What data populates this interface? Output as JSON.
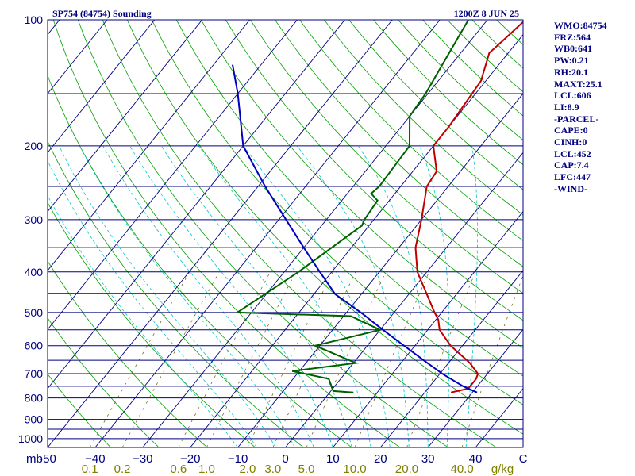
{
  "header": {
    "station": "SP754 (84754) Sounding",
    "datetime": "1200Z  8 JUN 25"
  },
  "side_panel": [
    "WMO:84754",
    "FRZ:564",
    "WB0:641",
    "PW:0.21",
    "RH:20.1",
    "MAXT:25.1",
    "LCL:606",
    "LI:8.9",
    "-PARCEL-",
    "CAPE:0",
    "CINH:0",
    "LCL:452",
    "CAP:7.4",
    "LFC:447",
    "-WIND-"
  ],
  "colors": {
    "frame": "#000080",
    "isobar": "#000080",
    "isotherm": "#000080",
    "dry_adiabat": "#00a000",
    "moist_adiabat": "#00c8c8",
    "mixing_ratio": "#606000",
    "temperature": "#c00000",
    "dewpoint": "#006000",
    "parcel": "#0000c0"
  },
  "chart_data": {
    "type": "line",
    "title": "SP754 (84754) Sounding",
    "y_unit_label": "mb",
    "x_unit_label": "C",
    "mixing_ratio_unit_label": "g/kg",
    "pressure_ticks": [
      100,
      200,
      300,
      400,
      500,
      600,
      700,
      800,
      900,
      1000
    ],
    "pressure_gridlines": [
      100,
      150,
      200,
      250,
      300,
      350,
      400,
      450,
      500,
      550,
      600,
      650,
      700,
      750,
      800,
      850,
      900,
      950,
      1000,
      1050
    ],
    "ylim": [
      1050,
      100
    ],
    "yscale": "log",
    "xlim": [
      -50,
      50
    ],
    "temperature_ticks": [
      -50,
      -40,
      -30,
      -20,
      -10,
      0,
      10,
      20,
      30,
      40
    ],
    "temperature_tick_labels": [
      "-50",
      "−40",
      "−30",
      "−20",
      "−10",
      "0",
      "10",
      "20",
      "30",
      "40"
    ],
    "mixing_ratio_ticks": [
      {
        "label": "0.1",
        "value": 0.1
      },
      {
        "label": "0.2",
        "value": 0.2
      },
      {
        "label": "0.6",
        "value": 0.6
      },
      {
        "label": "1.0",
        "value": 1.0
      },
      {
        "label": "2.0",
        "value": 2.0
      },
      {
        "label": "3.0",
        "value": 3.0
      },
      {
        "label": "5.0",
        "value": 5.0
      },
      {
        "label": "10.0",
        "value": 10.0
      },
      {
        "label": "20.0",
        "value": 20.0
      },
      {
        "label": "40.0",
        "value": 40.0
      }
    ],
    "skew_deg_per_decade": 71,
    "series": [
      {
        "key": "temperature",
        "points": [
          [
            776,
            25.5
          ],
          [
            760,
            28.5
          ],
          [
            720,
            28.5
          ],
          [
            700,
            28.0
          ],
          [
            660,
            24.5
          ],
          [
            600,
            17.5
          ],
          [
            550,
            12.5
          ],
          [
            520,
            10.5
          ],
          [
            500,
            8.5
          ],
          [
            400,
            -2.0
          ],
          [
            350,
            -6.5
          ],
          [
            300,
            -10.0
          ],
          [
            250,
            -14.5
          ],
          [
            230,
            -15.0
          ],
          [
            200,
            -20.0
          ],
          [
            180,
            -20.0
          ],
          [
            140,
            -21.0
          ],
          [
            120,
            -24.0
          ],
          [
            110,
            -23.0
          ],
          [
            100,
            -22.0
          ]
        ]
      },
      {
        "key": "dewpoint",
        "points": [
          [
            776,
            5.0
          ],
          [
            770,
            0.5
          ],
          [
            720,
            -2.5
          ],
          [
            690,
            -11.5
          ],
          [
            660,
            0.5
          ],
          [
            600,
            -11.0
          ],
          [
            550,
            0.0
          ],
          [
            510,
            -8.5
          ],
          [
            500,
            -33.0
          ],
          [
            400,
            -27.0
          ],
          [
            310,
            -21.5
          ],
          [
            300,
            -22.0
          ],
          [
            270,
            -22.5
          ],
          [
            260,
            -25.0
          ],
          [
            250,
            -24.5
          ],
          [
            200,
            -25.0
          ],
          [
            170,
            -30.0
          ],
          [
            150,
            -30.5
          ],
          [
            100,
            -34.0
          ]
        ]
      },
      {
        "key": "parcel",
        "points": [
          [
            776,
            31.0
          ],
          [
            750,
            27.0
          ],
          [
            700,
            20.5
          ],
          [
            650,
            14.3
          ],
          [
            600,
            7.7
          ],
          [
            550,
            0.6
          ],
          [
            500,
            -7.0
          ],
          [
            452,
            -15.5
          ],
          [
            400,
            -22.5
          ],
          [
            350,
            -30.0
          ],
          [
            300,
            -38.5
          ],
          [
            250,
            -48.5
          ],
          [
            200,
            -60.0
          ],
          [
            150,
            -70.0
          ],
          [
            128,
            -76.0
          ]
        ]
      }
    ]
  }
}
